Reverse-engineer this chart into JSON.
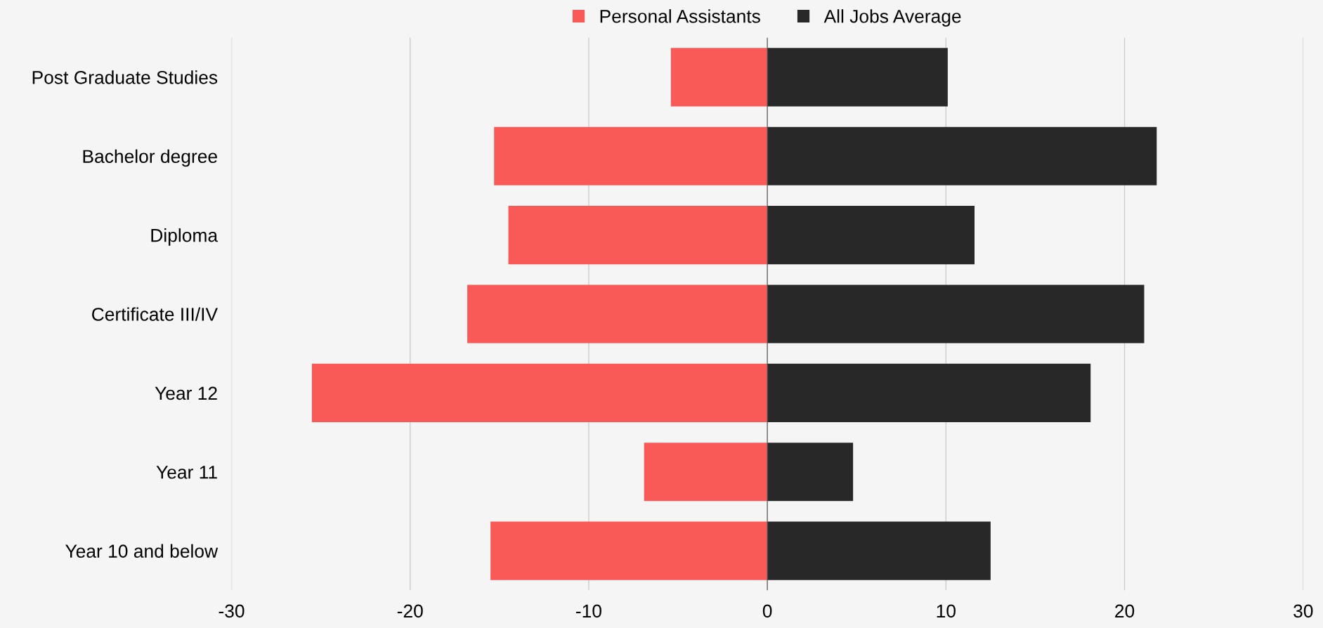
{
  "chart_data": {
    "type": "bar",
    "orientation": "horizontal",
    "categories": [
      "Post Graduate Studies",
      "Bachelor degree",
      "Diploma",
      "Certificate III/IV",
      "Year 12",
      "Year 11",
      "Year 10 and below"
    ],
    "series": [
      {
        "name": "Personal Assistants",
        "color": "#fa5a57",
        "values": [
          -5.4,
          -15.3,
          -14.5,
          -16.8,
          -25.5,
          -6.9,
          -15.5
        ]
      },
      {
        "name": "All Jobs Average",
        "color": "#282828",
        "values": [
          10.1,
          21.8,
          11.6,
          21.1,
          18.1,
          4.8,
          12.5
        ]
      }
    ],
    "xlim": [
      -30,
      30
    ],
    "xticks": [
      -30,
      -20,
      -10,
      0,
      10,
      20,
      30
    ],
    "grid": "x",
    "legend": "top",
    "stacked": true,
    "ref_lines": [
      {
        "axis": "x",
        "value": 0,
        "color": "#555555"
      }
    ]
  }
}
